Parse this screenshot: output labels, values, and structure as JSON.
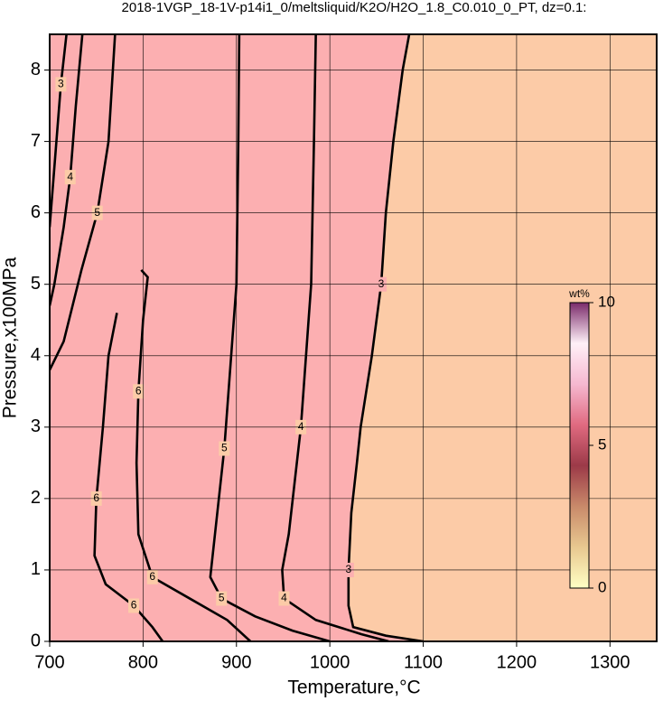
{
  "chart_data": {
    "type": "contour",
    "title": "2018-1VGP_18-1V-p14i1_0/meltsliquid/K2O/H2O_1.8_C0.010_0_PT, dz=0.1:",
    "x_label": "Temperature,°C",
    "y_label": "Pressure,x100MPa",
    "xlim": [
      700,
      1350
    ],
    "ylim": [
      0,
      8.5
    ],
    "xticks": [
      700,
      800,
      900,
      1000,
      1100,
      1200,
      1300
    ],
    "yticks": [
      0,
      1,
      2,
      3,
      4,
      5,
      6,
      7,
      8
    ],
    "grid": true,
    "background": "#fccba7",
    "contours": [
      {
        "level": 3,
        "fill": "#fcafb1",
        "x": [
          1100,
          1060,
          1025,
          1020,
          1020,
          1023,
          1029,
          1033,
          1045,
          1055,
          1060,
          1068,
          1078,
          1085
        ],
        "y": [
          0,
          0.08,
          0.2,
          0.5,
          1,
          1.8,
          2.5,
          3,
          4,
          5,
          6,
          7,
          8,
          8.5
        ]
      },
      {
        "level": 4,
        "x": [
          1063,
          1034,
          985,
          951,
          949,
          956,
          969,
          980,
          983,
          985
        ],
        "y": [
          0,
          0.1,
          0.3,
          0.6,
          1,
          1.5,
          3,
          5,
          7,
          8.5
        ]
      },
      {
        "level": 5,
        "x": [
          1000,
          960,
          920,
          884,
          872,
          877,
          887,
          900,
          902,
          903
        ],
        "y": [
          0,
          0.15,
          0.35,
          0.6,
          0.9,
          1.5,
          2.7,
          5,
          7,
          8.5
        ]
      },
      {
        "level": 6,
        "x": [
          772,
          763,
          757,
          750,
          748,
          760,
          790,
          810,
          821
        ],
        "y": [
          4.6,
          4.0,
          3.0,
          2.0,
          1.2,
          0.8,
          0.5,
          0.2,
          0
        ]
      },
      {
        "level": 6,
        "x": [
          798,
          805,
          800,
          795,
          793,
          795,
          810,
          850,
          890,
          915
        ],
        "y": [
          5.2,
          5.1,
          4.5,
          3.5,
          2.5,
          1.5,
          0.9,
          0.6,
          0.3,
          0
        ]
      },
      {
        "level": 5,
        "x": [
          700,
          715,
          734,
          751,
          763,
          770
        ],
        "y": [
          3.8,
          4.2,
          5.2,
          6,
          7,
          8.5
        ]
      },
      {
        "level": 4,
        "x": [
          700,
          705,
          715,
          722,
          728,
          735
        ],
        "y": [
          4.7,
          5,
          5.8,
          6.5,
          7.5,
          8.5
        ]
      },
      {
        "level": 3,
        "x": [
          700,
          706,
          712,
          718
        ],
        "y": [
          5.8,
          6.8,
          7.8,
          8.5
        ]
      }
    ],
    "colorbar": {
      "label": "wt%",
      "lim": [
        0,
        10
      ],
      "ticks": [
        0,
        5,
        10
      ],
      "colors": [
        "#ffffc4",
        "#e8c890",
        "#c98a6a",
        "#9c3a48",
        "#e06a80",
        "#f6b8d0",
        "#fff0f8",
        "#7a2a6a"
      ]
    }
  }
}
